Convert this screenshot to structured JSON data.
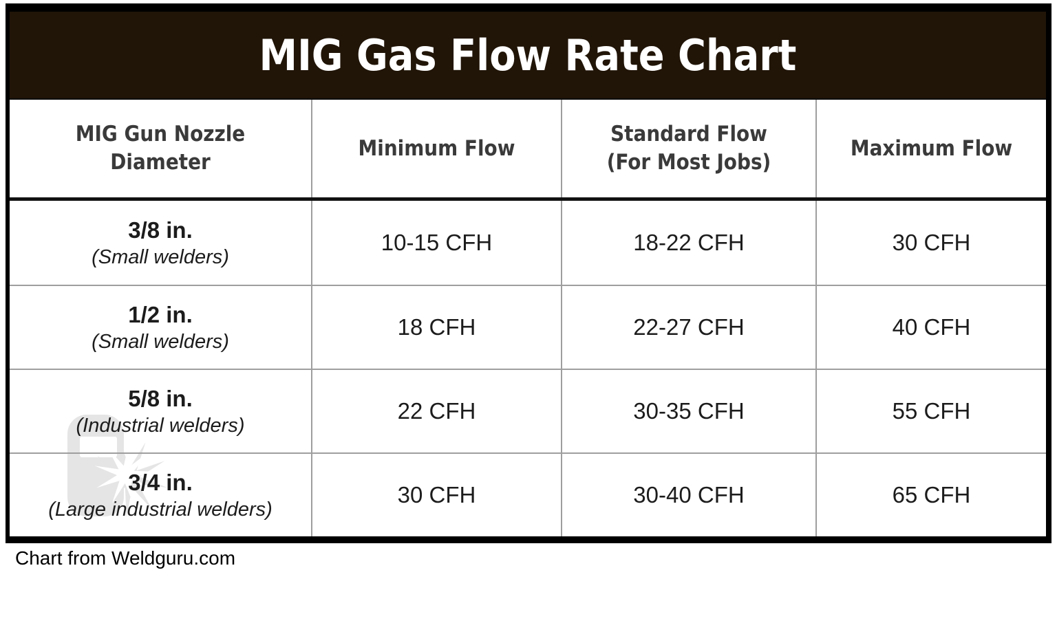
{
  "title": "MIG Gas Flow Rate Chart",
  "header": {
    "col1_line1": "MIG Gun Nozzle",
    "col1_line2": "Diameter",
    "col2": "Minimum Flow",
    "col3_line1": "Standard Flow",
    "col3_line2": "(For Most Jobs)",
    "col4": "Maximum Flow"
  },
  "rows": [
    {
      "size": "3/8 in.",
      "type": "(Small welders)",
      "min": "10-15 CFH",
      "std": "18-22 CFH",
      "max": "30 CFH"
    },
    {
      "size": "1/2 in.",
      "type": "(Small welders)",
      "min": "18 CFH",
      "std": "22-27 CFH",
      "max": "40 CFH"
    },
    {
      "size": "5/8 in.",
      "type": "(Industrial welders)",
      "min": "22 CFH",
      "std": "30-35 CFH",
      "max": "55 CFH"
    },
    {
      "size": "3/4 in.",
      "type": "(Large industrial welders)",
      "min": "30 CFH",
      "std": "30-40 CFH",
      "max": "65 CFH"
    }
  ],
  "footer": {
    "attribution": "Chart from Weldguru.com"
  },
  "watermark": {
    "icon": "weldguru-helmet-spark-logo"
  },
  "colors": {
    "title_bar_bg": "#211508",
    "title_text": "#ffffff",
    "header_text": "#3a3a3a",
    "body_text": "#1c1c1c",
    "grid_line": "#9e9e9e",
    "header_separator": "#111111",
    "outer_border": "#000000",
    "watermark_gray": "#e5e5e5"
  },
  "chart_data": {
    "type": "table",
    "title": "MIG Gas Flow Rate Chart",
    "columns": [
      "MIG Gun Nozzle Diameter",
      "Minimum Flow",
      "Standard Flow (For Most Jobs)",
      "Maximum Flow"
    ],
    "rows": [
      [
        "3/8 in. (Small welders)",
        "10-15 CFH",
        "18-22 CFH",
        "30 CFH"
      ],
      [
        "1/2 in. (Small welders)",
        "18 CFH",
        "22-27 CFH",
        "40 CFH"
      ],
      [
        "5/8 in. (Industrial welders)",
        "22 CFH",
        "30-35 CFH",
        "55 CFH"
      ],
      [
        "3/4 in. (Large industrial welders)",
        "30 CFH",
        "30-40 CFH",
        "65 CFH"
      ]
    ],
    "units": "CFH",
    "source": "Chart from Weldguru.com"
  }
}
